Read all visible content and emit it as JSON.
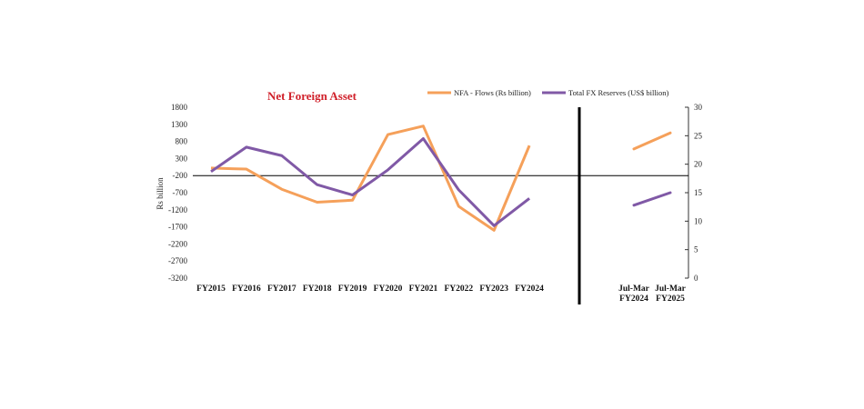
{
  "colors": {
    "nfa": "#F5A05A",
    "fx": "#8059A6",
    "title": "#D0202A"
  },
  "chart_data": {
    "type": "line",
    "title": "Net Foreign Asset",
    "ylabel_left": "Rs billion",
    "ylabel_right": "",
    "left_axis": {
      "ticks": [
        1800,
        1300,
        800,
        300,
        -200,
        -700,
        -1200,
        -1700,
        -2200,
        -2700,
        -3200
      ],
      "range": [
        -3200,
        1800
      ]
    },
    "right_axis": {
      "ticks": [
        30,
        25,
        20,
        15,
        10,
        5,
        0
      ],
      "range": [
        0,
        30
      ]
    },
    "categories": [
      "FY2015",
      "FY2016",
      "FY2017",
      "FY2018",
      "FY2019",
      "FY2020",
      "FY2021",
      "FY2022",
      "FY2023",
      "FY2024"
    ],
    "extra_categories": [
      {
        "line1": "Jul-Mar",
        "line2": "FY2024"
      },
      {
        "line1": "Jul-Mar",
        "line2": "FY2025"
      }
    ],
    "baseline_left": -200,
    "legend_position": "top-right",
    "series": [
      {
        "name": "NFA - Flows (Rs billion)",
        "axis": "left",
        "values": [
          20,
          -10,
          -600,
          -980,
          -920,
          1000,
          1250,
          -1100,
          -1800,
          680
        ],
        "extra_values": [
          580,
          1050
        ]
      },
      {
        "name": "Total FX Reserves (US$ billion)",
        "axis": "right",
        "values": [
          18.7,
          23.0,
          21.5,
          16.4,
          14.6,
          19.0,
          24.5,
          15.5,
          9.2,
          14.0
        ],
        "extra_values": [
          12.8,
          15.0
        ]
      }
    ]
  }
}
